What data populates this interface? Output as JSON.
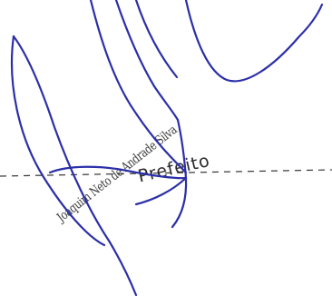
{
  "document": {
    "signer_name": "Joaquim Neto de Andrade Silva",
    "signer_role": "Prefeito"
  },
  "colors": {
    "signature_ink": "#2b2fa8",
    "stamp_ink": "#2f2f2f",
    "signature_line": "#3a3a3a",
    "background": "#ffffff"
  }
}
